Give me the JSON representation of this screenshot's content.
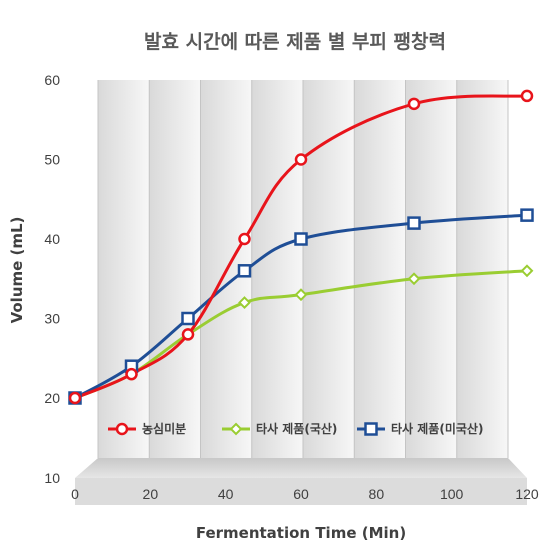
{
  "chart_data": {
    "type": "line",
    "title": "발효 시간에 따른 제품 별 부피 팽창력",
    "xlabel": "Fermentation Time (Min)",
    "ylabel": "Volume (mL)",
    "xlim": [
      0,
      120
    ],
    "ylim": [
      10,
      60
    ],
    "x_ticks": [
      0,
      20,
      40,
      60,
      80,
      100,
      120
    ],
    "y_ticks": [
      10,
      20,
      30,
      40,
      50,
      60
    ],
    "legend_position": "bottom",
    "series": [
      {
        "name": "농심미분",
        "color": "#e8141b",
        "marker": "circle",
        "x": [
          0,
          15,
          30,
          45,
          60,
          90,
          120
        ],
        "y": [
          20,
          23,
          28,
          40,
          50,
          57,
          58
        ]
      },
      {
        "name": "타사 제품(국산)",
        "color": "#9acd32",
        "marker": "diamond",
        "x": [
          0,
          15,
          30,
          45,
          60,
          90,
          120
        ],
        "y": [
          20,
          23,
          28,
          32,
          33,
          35,
          36
        ]
      },
      {
        "name": "타사 제품(미국산)",
        "color": "#1f4e96",
        "marker": "square",
        "x": [
          0,
          15,
          30,
          45,
          60,
          90,
          120
        ],
        "y": [
          20,
          24,
          30,
          36,
          40,
          42,
          43
        ]
      }
    ]
  }
}
